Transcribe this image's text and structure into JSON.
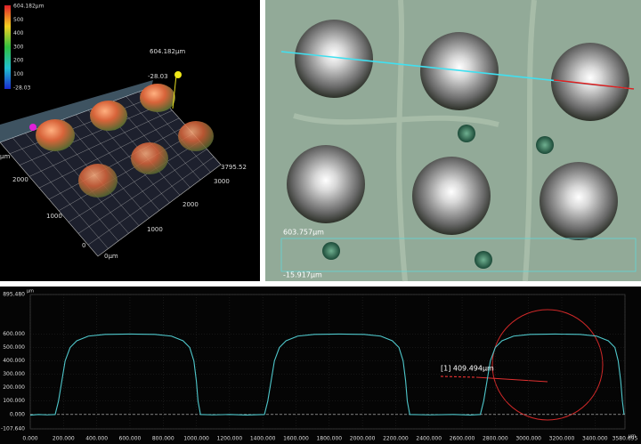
{
  "view3d": {
    "scale_labels": [
      "604.182µm",
      "500",
      "400",
      "300",
      "200",
      "100",
      "-28.03"
    ],
    "axis_labels": [
      "604.182µm",
      "-28.03",
      "µm",
      "2000",
      "1000",
      "0",
      "0µm",
      "1000",
      "2000",
      "3000",
      "3795.52"
    ]
  },
  "image_panel": {
    "labels": [
      "603.757µm",
      "-15.917µm"
    ]
  },
  "chart_data": {
    "type": "line",
    "y_label": "µm",
    "x_label": "µm",
    "annotation": "[1] 409.494µm",
    "color": "#4fc8cc",
    "x": [
      0,
      50,
      100,
      150,
      170,
      190,
      210,
      240,
      280,
      350,
      450,
      600,
      750,
      850,
      920,
      960,
      985,
      1000,
      1010,
      1025,
      1100,
      1200,
      1300,
      1410,
      1430,
      1450,
      1470,
      1500,
      1540,
      1610,
      1710,
      1860,
      2010,
      2110,
      2180,
      2220,
      2245,
      2260,
      2270,
      2285,
      2400,
      2550,
      2650,
      2710,
      2730,
      2750,
      2770,
      2800,
      2840,
      2910,
      3010,
      3160,
      3310,
      3410,
      3480,
      3520,
      3540,
      3555,
      3565,
      3575
    ],
    "values": [
      -5,
      0,
      -3,
      0,
      100,
      250,
      400,
      500,
      550,
      585,
      598,
      600,
      598,
      585,
      550,
      500,
      400,
      250,
      100,
      0,
      -3,
      0,
      -4,
      0,
      100,
      250,
      400,
      500,
      550,
      585,
      598,
      600,
      598,
      585,
      550,
      500,
      400,
      250,
      100,
      0,
      -3,
      0,
      -4,
      0,
      100,
      250,
      400,
      500,
      550,
      585,
      598,
      600,
      598,
      585,
      550,
      500,
      400,
      250,
      100,
      0
    ],
    "xlim": [
      0,
      3580.695
    ],
    "ylim": [
      -107.64,
      895.48
    ],
    "xticks": [
      {
        "value": 0,
        "label": "0.000"
      },
      {
        "value": 200,
        "label": "200.000"
      },
      {
        "value": 400,
        "label": "400.000"
      },
      {
        "value": 600,
        "label": "600.000"
      },
      {
        "value": 800,
        "label": "800.000"
      },
      {
        "value": 1000,
        "label": "1000.000"
      },
      {
        "value": 1200,
        "label": "1200.000"
      },
      {
        "value": 1400,
        "label": "1400.000"
      },
      {
        "value": 1600,
        "label": "1600.000"
      },
      {
        "value": 1800,
        "label": "1800.000"
      },
      {
        "value": 2000,
        "label": "2000.000"
      },
      {
        "value": 2200,
        "label": "2200.000"
      },
      {
        "value": 2400,
        "label": "2400.000"
      },
      {
        "value": 2600,
        "label": "2600.000"
      },
      {
        "value": 2800,
        "label": "2800.000"
      },
      {
        "value": 3000,
        "label": "3000.000"
      },
      {
        "value": 3200,
        "label": "3200.000"
      },
      {
        "value": 3400,
        "label": "3400.000"
      },
      3580.695
    ],
    "yticks": [
      {
        "value": -107.64,
        "label": "-107.640"
      },
      {
        "value": 0,
        "label": "0.000"
      },
      {
        "value": 100,
        "label": "100.000"
      },
      {
        "value": 200,
        "label": "200.000"
      },
      {
        "value": 300,
        "label": "300.000"
      },
      {
        "value": 400,
        "label": "400.000"
      },
      {
        "value": 500,
        "label": "500.000"
      },
      {
        "value": 600,
        "label": "600.000"
      },
      {
        "value": 895.48,
        "label": "895.480"
      }
    ],
    "grid": true
  }
}
